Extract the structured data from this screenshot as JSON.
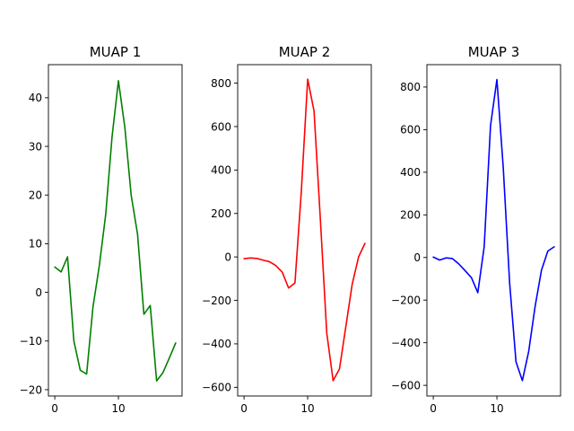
{
  "chart_data": [
    {
      "type": "line",
      "title": "MUAP 1",
      "xlabel": "",
      "ylabel": "",
      "color": "#008000",
      "xlim": [
        -1,
        20
      ],
      "ylim": [
        -21.3,
        46.8
      ],
      "xticks": [
        0,
        10
      ],
      "yticks": [
        -20,
        -10,
        0,
        10,
        20,
        30,
        40
      ],
      "grid": false,
      "x": [
        0,
        1,
        2,
        3,
        4,
        5,
        6,
        7,
        8,
        9,
        10,
        11,
        12,
        13,
        14,
        15,
        16,
        17,
        18,
        19
      ],
      "series": [
        {
          "values": [
            5.2,
            4.2,
            7.3,
            -10.0,
            -16.0,
            -16.8,
            -3.0,
            5.5,
            16.0,
            32.0,
            43.5,
            34.0,
            20.0,
            12.0,
            -4.5,
            -2.7,
            -18.2,
            -16.5,
            -13.5,
            -10.4
          ]
        }
      ]
    },
    {
      "type": "line",
      "title": "MUAP 2",
      "xlabel": "",
      "ylabel": "",
      "color": "#ff0000",
      "xlim": [
        -1,
        20
      ],
      "ylim": [
        -640,
        885
      ],
      "xticks": [
        0,
        10
      ],
      "yticks": [
        -600,
        -400,
        -200,
        0,
        200,
        400,
        600,
        800
      ],
      "grid": false,
      "x": [
        0,
        1,
        2,
        3,
        4,
        5,
        6,
        7,
        8,
        9,
        10,
        11,
        12,
        13,
        14,
        15,
        16,
        17,
        18,
        19
      ],
      "series": [
        {
          "values": [
            -8,
            -5,
            -7,
            -15,
            -22,
            -40,
            -70,
            -143,
            -120,
            300,
            818,
            672,
            170,
            -350,
            -570,
            -515,
            -320,
            -125,
            0,
            62
          ]
        }
      ]
    },
    {
      "type": "line",
      "title": "MUAP 3",
      "xlabel": "",
      "ylabel": "",
      "color": "#0000ff",
      "xlim": [
        -1,
        20
      ],
      "ylim": [
        -650,
        905
      ],
      "xticks": [
        0,
        10
      ],
      "yticks": [
        -600,
        -400,
        -200,
        0,
        200,
        400,
        600,
        800
      ],
      "grid": false,
      "x": [
        0,
        1,
        2,
        3,
        4,
        5,
        6,
        7,
        8,
        9,
        10,
        11,
        12,
        13,
        14,
        15,
        16,
        17,
        18,
        19
      ],
      "series": [
        {
          "values": [
            2,
            -12,
            -2,
            -5,
            -30,
            -62,
            -95,
            -165,
            50,
            620,
            835,
            420,
            -120,
            -490,
            -578,
            -440,
            -230,
            -60,
            30,
            50
          ]
        }
      ]
    }
  ]
}
